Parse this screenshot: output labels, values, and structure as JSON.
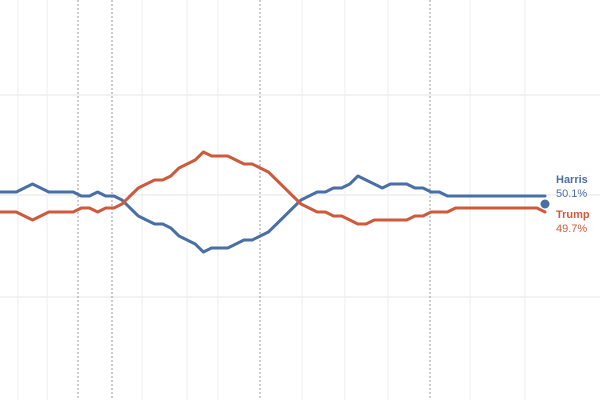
{
  "chart_data": {
    "type": "line",
    "title": "",
    "xlabel": "",
    "ylabel": "",
    "ylim": [
      45,
      55
    ],
    "grid": true,
    "x": [
      0,
      1,
      2,
      3,
      4,
      5,
      6,
      7,
      8,
      9,
      10,
      11,
      12,
      13,
      14,
      15,
      16,
      17,
      18,
      19,
      20,
      21,
      22,
      23,
      24,
      25,
      26,
      27,
      28,
      29,
      30,
      31,
      32,
      33,
      34,
      35,
      36,
      37,
      38,
      39,
      40,
      41,
      42,
      43,
      44,
      45,
      46,
      47,
      48,
      49,
      50,
      51,
      52,
      53,
      54,
      55,
      56,
      57,
      58,
      59,
      60,
      61,
      62,
      63,
      64,
      65,
      66,
      67
    ],
    "series": [
      {
        "name": "Harris",
        "color": "#4a6fa5",
        "end_label": "50.1%",
        "values": [
          50.2,
          50.2,
          50.2,
          50.3,
          50.4,
          50.3,
          50.2,
          50.2,
          50.2,
          50.2,
          50.1,
          50.1,
          50.2,
          50.1,
          50.1,
          50.0,
          49.8,
          49.6,
          49.5,
          49.4,
          49.4,
          49.3,
          49.1,
          49.0,
          48.9,
          48.7,
          48.8,
          48.8,
          48.8,
          48.9,
          49.0,
          49.0,
          49.1,
          49.2,
          49.4,
          49.6,
          49.8,
          50.0,
          50.1,
          50.2,
          50.2,
          50.3,
          50.3,
          50.4,
          50.6,
          50.5,
          50.4,
          50.3,
          50.4,
          50.4,
          50.4,
          50.3,
          50.3,
          50.2,
          50.2,
          50.1,
          50.1,
          50.1,
          50.1,
          50.1,
          50.1,
          50.1,
          50.1,
          50.1,
          50.1,
          50.1,
          50.1,
          50.1
        ]
      },
      {
        "name": "Trump",
        "color": "#cc5a3d",
        "end_label": "49.7%",
        "values": [
          49.7,
          49.7,
          49.7,
          49.6,
          49.5,
          49.6,
          49.7,
          49.7,
          49.7,
          49.7,
          49.8,
          49.8,
          49.7,
          49.8,
          49.8,
          49.9,
          50.1,
          50.3,
          50.4,
          50.5,
          50.5,
          50.6,
          50.8,
          50.9,
          51.0,
          51.2,
          51.1,
          51.1,
          51.1,
          51.0,
          50.9,
          50.9,
          50.8,
          50.7,
          50.5,
          50.3,
          50.1,
          49.9,
          49.8,
          49.7,
          49.7,
          49.6,
          49.6,
          49.5,
          49.4,
          49.4,
          49.5,
          49.5,
          49.5,
          49.5,
          49.5,
          49.6,
          49.6,
          49.7,
          49.7,
          49.7,
          49.8,
          49.8,
          49.8,
          49.8,
          49.8,
          49.8,
          49.8,
          49.8,
          49.8,
          49.8,
          49.8,
          49.7
        ]
      }
    ]
  }
}
